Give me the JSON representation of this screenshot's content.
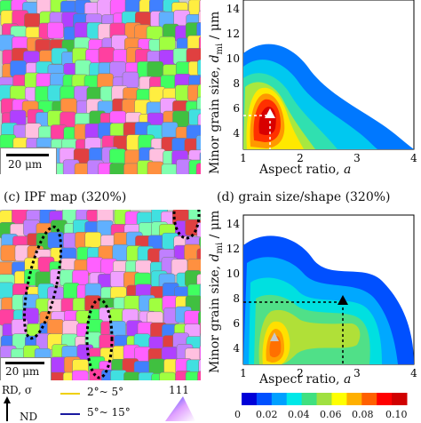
{
  "panel_a": {
    "scale_label": "20 μm"
  },
  "panel_b": {
    "ylabel_prefix": "Minor grain size, ",
    "ylabel_sym": "d",
    "ylabel_sub": "mi",
    "ylabel_suffix": " / μm",
    "xlabel_prefix": "Aspect ratio, ",
    "xlabel_sym": "a",
    "x_ticks": [
      "1",
      "2",
      "3",
      "4"
    ],
    "y_ticks": [
      "4",
      "6",
      "8",
      "10",
      "12",
      "14"
    ]
  },
  "panel_c": {
    "caption": "(c) IPF map (320%)",
    "scale_label": "20 μm"
  },
  "panel_d": {
    "caption": "(d) grain size/shape (320%)",
    "ylabel_prefix": "Minor grain size, ",
    "ylabel_sym": "d",
    "ylabel_sub": "mi",
    "ylabel_suffix": " / μm",
    "xlabel_prefix": "Aspect ratio, ",
    "xlabel_sym": "a",
    "x_ticks": [
      "1",
      "2",
      "3",
      "4"
    ],
    "y_ticks": [
      "4",
      "6",
      "8",
      "10",
      "12",
      "14"
    ]
  },
  "legend": {
    "rd_label": "RD, σ",
    "nd_label": "ND",
    "boundary_low": "2°~ 5°",
    "boundary_high": "5°~ 15°",
    "boundary_low_color": "#f0d000",
    "boundary_high_color": "#1a1aa0",
    "ipf_corner": "111"
  },
  "colorbar": {
    "ticks": [
      "0",
      "0.02",
      "0.04",
      "0.06",
      "0.08",
      "0.10"
    ],
    "colors": [
      "#0000d8",
      "#0050ff",
      "#00a0ff",
      "#00e8e8",
      "#40e080",
      "#a0e040",
      "#ffff00",
      "#ffb000",
      "#ff6000",
      "#ff0000",
      "#d00000"
    ]
  },
  "chart_data": [
    {
      "type": "heatmap",
      "xlabel": "Aspect ratio, a",
      "ylabel": "Minor grain size, dmi / μm",
      "xlim": [
        1,
        4
      ],
      "ylim": [
        3,
        15
      ],
      "peaks": [
        {
          "x": 1.5,
          "y": 5.9,
          "value": 0.1
        }
      ]
    },
    {
      "type": "heatmap",
      "xlabel": "Aspect ratio, a",
      "ylabel": "Minor grain size, dmi / μm",
      "xlim": [
        1,
        4
      ],
      "ylim": [
        3,
        15
      ],
      "peaks": [
        {
          "x": 1.5,
          "y": 4.5,
          "value": 0.05
        },
        {
          "x": 2.9,
          "y": 7.4,
          "value": 0.05
        }
      ]
    }
  ]
}
